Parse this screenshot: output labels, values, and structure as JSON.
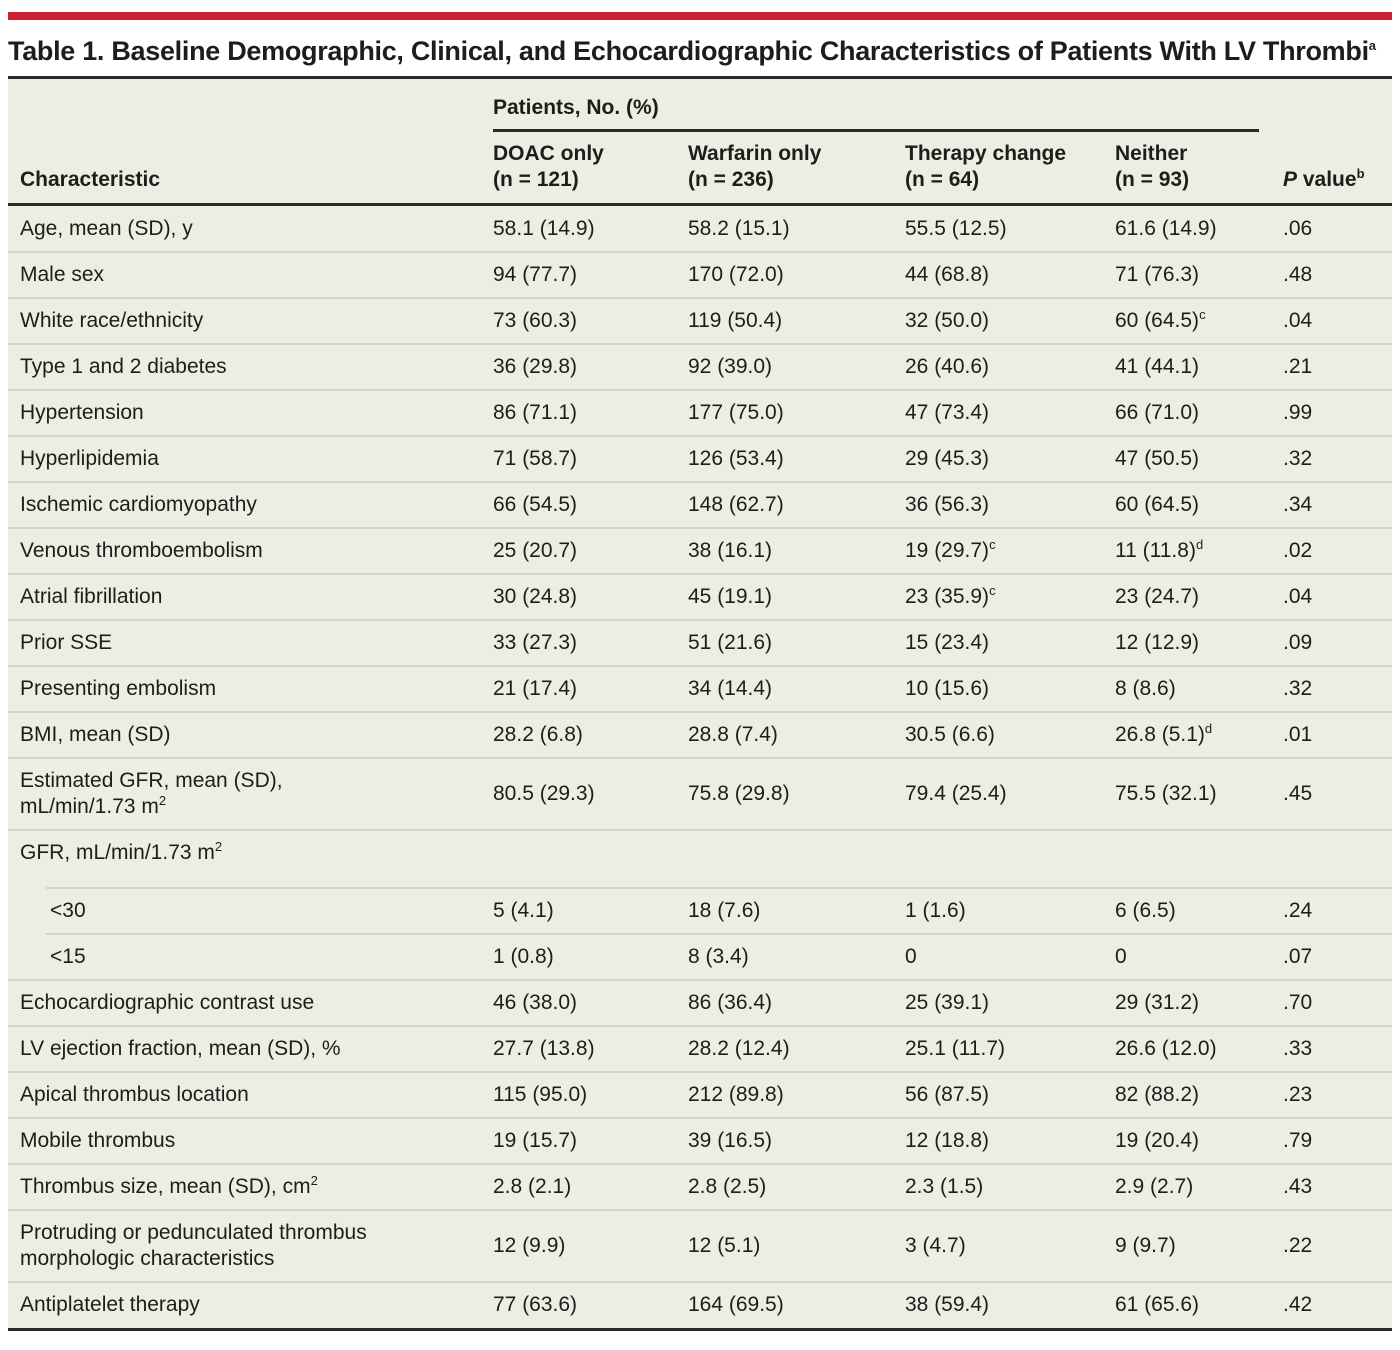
{
  "colors": {
    "accent": "#d02035",
    "table_background": "#eeede3",
    "rule_dark": "#2b2a26",
    "rule_light": "#d4d3c8"
  },
  "title": {
    "text": "Table 1. Baseline Demographic, Clinical, and Echocardiographic Characteristics of Patients With LV Thrombi",
    "sup": "a"
  },
  "table": {
    "header": {
      "characteristic": "Characteristic",
      "spanner": "Patients, No. (%)",
      "columns": [
        {
          "name": "DOAC only",
          "n": "(n = 121)"
        },
        {
          "name": "Warfarin only",
          "n": "(n = 236)"
        },
        {
          "name": "Therapy change",
          "n": "(n = 64)"
        },
        {
          "name": "Neither",
          "n": "(n = 93)"
        }
      ],
      "p_italic": "P",
      "p_rest": " value",
      "p_sup": "b"
    },
    "rows": [
      {
        "label": "Age, mean (SD), y",
        "values": [
          "58.1 (14.9)",
          "58.2 (15.1)",
          "55.5 (12.5)",
          "61.6 (14.9)"
        ],
        "p": ".06"
      },
      {
        "label": "Male sex",
        "values": [
          "94 (77.7)",
          "170 (72.0)",
          "44 (68.8)",
          "71 (76.3)"
        ],
        "p": ".48"
      },
      {
        "label": "White race/ethnicity",
        "values": [
          "73 (60.3)",
          "119 (50.4)",
          "32 (50.0)",
          "60 (64.5)^c"
        ],
        "p": ".04"
      },
      {
        "label": "Type 1 and 2 diabetes",
        "values": [
          "36 (29.8)",
          "92 (39.0)",
          "26 (40.6)",
          "41 (44.1)"
        ],
        "p": ".21"
      },
      {
        "label": "Hypertension",
        "values": [
          "86 (71.1)",
          "177 (75.0)",
          "47 (73.4)",
          "66 (71.0)"
        ],
        "p": ".99"
      },
      {
        "label": "Hyperlipidemia",
        "values": [
          "71 (58.7)",
          "126 (53.4)",
          "29 (45.3)",
          "47 (50.5)"
        ],
        "p": ".32"
      },
      {
        "label": "Ischemic cardiomyopathy",
        "values": [
          "66 (54.5)",
          "148 (62.7)",
          "36 (56.3)",
          "60 (64.5)"
        ],
        "p": ".34"
      },
      {
        "label": "Venous thromboembolism",
        "values": [
          "25 (20.7)",
          "38 (16.1)",
          "19 (29.7)^c",
          "11 (11.8)^d"
        ],
        "p": ".02"
      },
      {
        "label": "Atrial fibrillation",
        "values": [
          "30 (24.8)",
          "45 (19.1)",
          "23 (35.9)^c",
          "23 (24.7)"
        ],
        "p": ".04"
      },
      {
        "label": "Prior SSE",
        "values": [
          "33 (27.3)",
          "51 (21.6)",
          "15 (23.4)",
          "12 (12.9)"
        ],
        "p": ".09"
      },
      {
        "label": "Presenting embolism",
        "values": [
          "21 (17.4)",
          "34 (14.4)",
          "10 (15.6)",
          "8 (8.6)"
        ],
        "p": ".32"
      },
      {
        "label": "BMI, mean (SD)",
        "values": [
          "28.2 (6.8)",
          "28.8 (7.4)",
          "30.5 (6.6)",
          "26.8 (5.1)^d"
        ],
        "p": ".01"
      },
      {
        "label": "Estimated GFR, mean (SD),\nmL/min/1.73 m^2",
        "values": [
          "80.5 (29.3)",
          "75.8 (29.8)",
          "79.4 (25.4)",
          "75.5 (32.1)"
        ],
        "p": ".45"
      },
      {
        "label": "GFR, mL/min/1.73 m^2",
        "section": true,
        "values": [
          "",
          "",
          "",
          ""
        ],
        "p": ""
      },
      {
        "label": "<30",
        "indent": true,
        "values": [
          "5 (4.1)",
          "18 (7.6)",
          "1 (1.6)",
          "6 (6.5)"
        ],
        "p": ".24"
      },
      {
        "label": "<15",
        "indent": true,
        "values": [
          "1 (0.8)",
          "8 (3.4)",
          "0",
          "0"
        ],
        "p": ".07"
      },
      {
        "label": "Echocardiographic contrast use",
        "values": [
          "46 (38.0)",
          "86 (36.4)",
          "25 (39.1)",
          "29 (31.2)"
        ],
        "p": ".70"
      },
      {
        "label": "LV ejection fraction, mean (SD), %",
        "values": [
          "27.7 (13.8)",
          "28.2 (12.4)",
          "25.1 (11.7)",
          "26.6 (12.0)"
        ],
        "p": ".33"
      },
      {
        "label": "Apical thrombus location",
        "values": [
          "115 (95.0)",
          "212 (89.8)",
          "56 (87.5)",
          "82 (88.2)"
        ],
        "p": ".23"
      },
      {
        "label": "Mobile thrombus",
        "values": [
          "19 (15.7)",
          "39 (16.5)",
          "12 (18.8)",
          "19 (20.4)"
        ],
        "p": ".79"
      },
      {
        "label": "Thrombus size, mean (SD), cm^2",
        "values": [
          "2.8 (2.1)",
          "2.8 (2.5)",
          "2.3 (1.5)",
          "2.9 (2.7)"
        ],
        "p": ".43"
      },
      {
        "label": "Protruding or pedunculated thrombus\nmorphologic characteristics",
        "values": [
          "12 (9.9)",
          "12 (5.1)",
          "3 (4.7)",
          "9 (9.7)"
        ],
        "p": ".22"
      },
      {
        "label": "Antiplatelet therapy",
        "values": [
          "77 (63.6)",
          "164 (69.5)",
          "38 (59.4)",
          "61 (65.6)"
        ],
        "p": ".42"
      }
    ]
  }
}
